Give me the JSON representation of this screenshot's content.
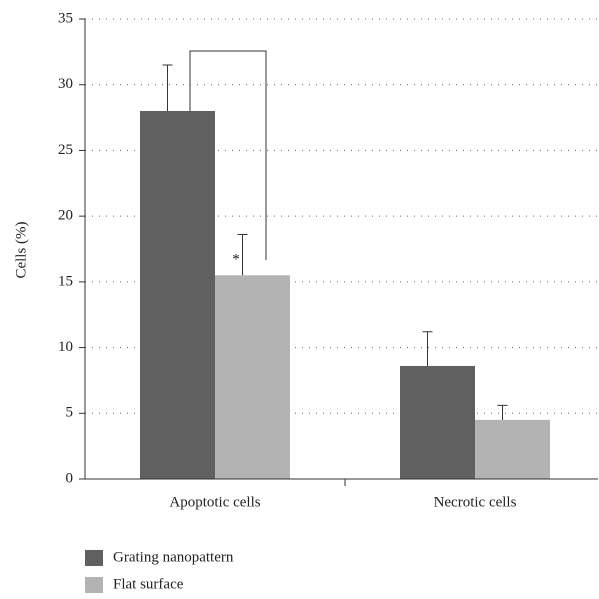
{
  "chart_data": {
    "type": "bar",
    "y_label": "Cells (%)",
    "categories": [
      "Apoptotic cells",
      "Necrotic cells"
    ],
    "series": [
      {
        "name": "Grating nanopattern",
        "color": "#606060",
        "values": [
          28,
          8.6
        ],
        "errors": [
          3.5,
          2.6
        ]
      },
      {
        "name": "Flat surface",
        "color": "#b3b3b3",
        "values": [
          15.5,
          4.5
        ],
        "errors": [
          3.1,
          1.1
        ]
      }
    ],
    "annotation": "*",
    "ylim": [
      0,
      35
    ],
    "yticks": [
      0,
      5,
      10,
      15,
      20,
      25,
      30,
      35
    ],
    "grid": true
  }
}
